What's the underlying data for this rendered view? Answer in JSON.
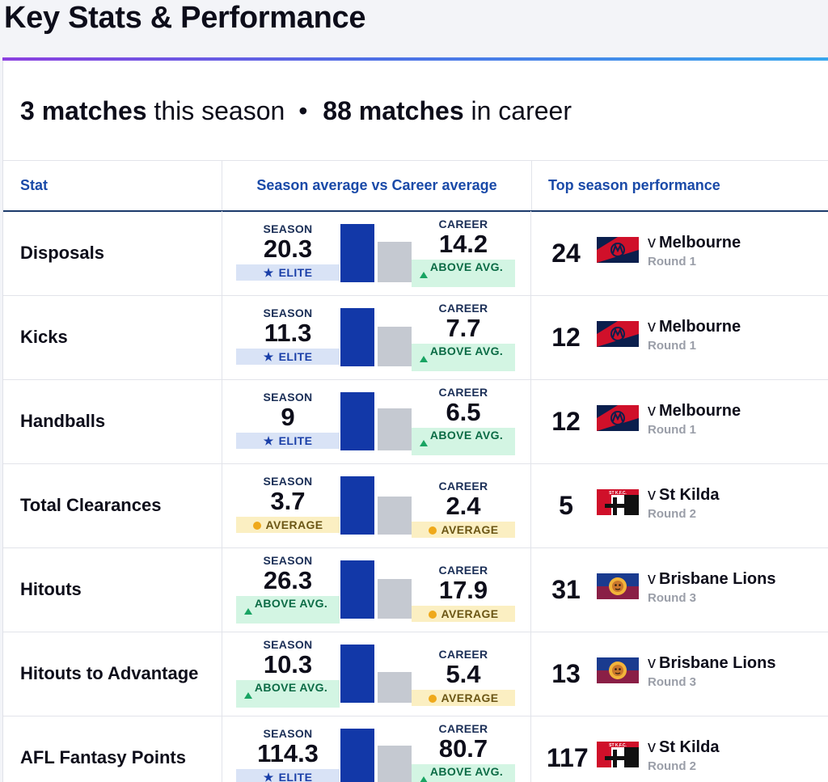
{
  "page": {
    "title": "Key Stats & Performance"
  },
  "summary": {
    "season_count": "3 matches",
    "season_text": "this season",
    "separator": "•",
    "career_count": "88 matches",
    "career_text": "in career"
  },
  "table": {
    "headers": {
      "stat": "Stat",
      "average": "Season average vs Career average",
      "top": "Top season performance"
    },
    "season_label": "SEASON",
    "career_label": "CAREER",
    "opponent_prefix": "v",
    "rows": [
      {
        "stat": "Disposals",
        "season": "20.3",
        "season_badge": "elite",
        "season_badge_text": "ELITE",
        "career": "14.2",
        "career_badge": "above",
        "career_badge_text": "ABOVE AVG.",
        "top_value": "24",
        "opponent": "Melbourne",
        "round": "Round 1",
        "club": "melbourne"
      },
      {
        "stat": "Kicks",
        "season": "11.3",
        "season_badge": "elite",
        "season_badge_text": "ELITE",
        "career": "7.7",
        "career_badge": "above",
        "career_badge_text": "ABOVE AVG.",
        "top_value": "12",
        "opponent": "Melbourne",
        "round": "Round 1",
        "club": "melbourne"
      },
      {
        "stat": "Handballs",
        "season": "9",
        "season_badge": "elite",
        "season_badge_text": "ELITE",
        "career": "6.5",
        "career_badge": "above",
        "career_badge_text": "ABOVE AVG.",
        "top_value": "12",
        "opponent": "Melbourne",
        "round": "Round 1",
        "club": "melbourne"
      },
      {
        "stat": "Total Clearances",
        "season": "3.7",
        "season_badge": "average",
        "season_badge_text": "AVERAGE",
        "career": "2.4",
        "career_badge": "average",
        "career_badge_text": "AVERAGE",
        "top_value": "5",
        "opponent": "St Kilda",
        "round": "Round 2",
        "club": "stkilda"
      },
      {
        "stat": "Hitouts",
        "season": "26.3",
        "season_badge": "above",
        "season_badge_text": "ABOVE AVG.",
        "career": "17.9",
        "career_badge": "average",
        "career_badge_text": "AVERAGE",
        "top_value": "31",
        "opponent": "Brisbane Lions",
        "round": "Round 3",
        "club": "brisbane"
      },
      {
        "stat": "Hitouts to Advantage",
        "season": "10.3",
        "season_badge": "above",
        "season_badge_text": "ABOVE AVG.",
        "career": "5.4",
        "career_badge": "average",
        "career_badge_text": "AVERAGE",
        "top_value": "13",
        "opponent": "Brisbane Lions",
        "round": "Round 3",
        "club": "brisbane"
      },
      {
        "stat": "AFL Fantasy Points",
        "season": "114.3",
        "season_badge": "elite",
        "season_badge_text": "ELITE",
        "career": "80.7",
        "career_badge": "above",
        "career_badge_text": "ABOVE AVG.",
        "top_value": "117",
        "opponent": "St Kilda",
        "round": "Round 2",
        "club": "stkilda"
      }
    ]
  },
  "colors": {
    "season_bar": "#1238a8",
    "career_bar": "#c5c9d1",
    "elite_bg": "#d9e3f6",
    "above_bg": "#d3f5e3",
    "average_bg": "#fbefc2",
    "header_text": "#1a4aa8"
  }
}
